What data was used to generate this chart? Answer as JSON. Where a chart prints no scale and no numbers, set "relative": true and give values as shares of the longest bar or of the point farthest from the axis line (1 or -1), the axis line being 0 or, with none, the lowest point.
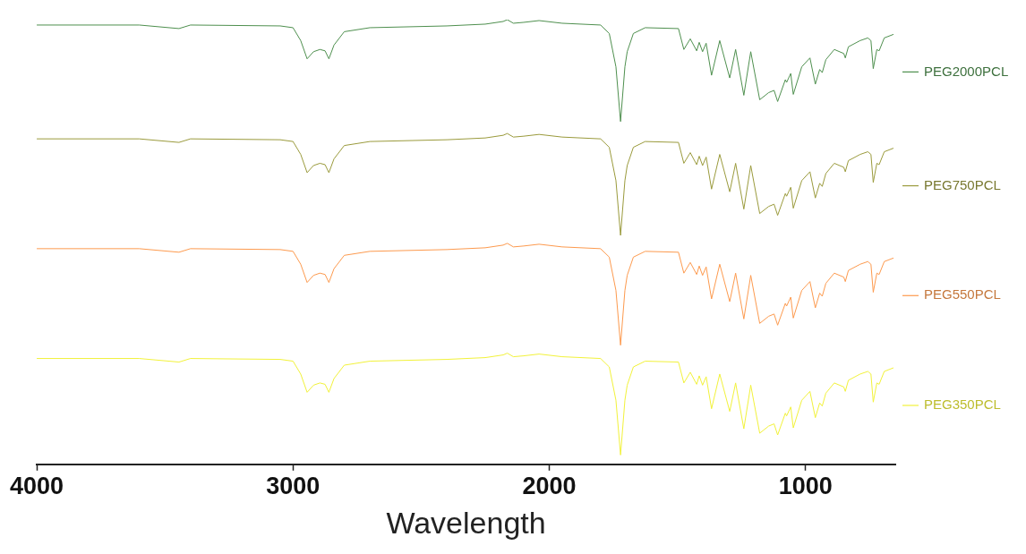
{
  "chart_data": {
    "type": "line",
    "xlabel": "Wavelength",
    "relative": true,
    "legend": "right",
    "marker": "none",
    "tick_labels": "x",
    "xlim": [
      4000,
      650
    ],
    "xticks": [
      4000,
      3000,
      2000,
      1000
    ],
    "x": [
      4000,
      3600,
      3445,
      3400,
      3050,
      3000,
      2970,
      2945,
      2920,
      2895,
      2875,
      2860,
      2840,
      2800,
      2700,
      2400,
      2250,
      2180,
      2164,
      2140,
      2100,
      2040,
      1950,
      1800,
      1766,
      1740,
      1722,
      1705,
      1696,
      1672,
      1626,
      1496,
      1475,
      1450,
      1425,
      1415,
      1402,
      1388,
      1367,
      1335,
      1296,
      1273,
      1241,
      1214,
      1179,
      1144,
      1123,
      1109,
      1079,
      1074,
      1058,
      1048,
      1015,
      983,
      962,
      945,
      935,
      921,
      888,
      851,
      845,
      833,
      787,
      757,
      745,
      736,
      722,
      713,
      693,
      657
    ],
    "series": [
      {
        "name": "PEG2000PCL",
        "color": "#4e8f4e",
        "values": [
          0.988,
          0.988,
          0.98,
          0.988,
          0.986,
          0.982,
          0.953,
          0.912,
          0.928,
          0.933,
          0.93,
          0.912,
          0.943,
          0.973,
          0.982,
          0.986,
          0.99,
          0.996,
          1,
          0.992,
          0.994,
          0.998,
          0.992,
          0.988,
          0.969,
          0.894,
          0.771,
          0.894,
          0.928,
          0.969,
          0.982,
          0.98,
          0.933,
          0.957,
          0.93,
          0.949,
          0.928,
          0.947,
          0.875,
          0.953,
          0.869,
          0.933,
          0.83,
          0.928,
          0.82,
          0.836,
          0.841,
          0.816,
          0.865,
          0.859,
          0.879,
          0.832,
          0.894,
          0.914,
          0.855,
          0.888,
          0.881,
          0.91,
          0.933,
          0.924,
          0.914,
          0.939,
          0.953,
          0.959,
          0.953,
          0.89,
          0.933,
          0.93,
          0.959,
          0.967
        ]
      },
      {
        "name": "PEG750PCL",
        "color": "#9a9a3c",
        "values": [
          0.732,
          0.732,
          0.724,
          0.732,
          0.73,
          0.726,
          0.697,
          0.656,
          0.672,
          0.677,
          0.674,
          0.656,
          0.687,
          0.717,
          0.726,
          0.73,
          0.734,
          0.74,
          0.744,
          0.736,
          0.738,
          0.742,
          0.736,
          0.732,
          0.713,
          0.638,
          0.515,
          0.638,
          0.672,
          0.713,
          0.726,
          0.724,
          0.677,
          0.701,
          0.674,
          0.693,
          0.672,
          0.691,
          0.619,
          0.697,
          0.613,
          0.677,
          0.574,
          0.672,
          0.564,
          0.58,
          0.585,
          0.56,
          0.609,
          0.603,
          0.623,
          0.576,
          0.638,
          0.658,
          0.599,
          0.632,
          0.625,
          0.654,
          0.677,
          0.668,
          0.658,
          0.683,
          0.697,
          0.703,
          0.697,
          0.634,
          0.677,
          0.674,
          0.703,
          0.711
        ]
      },
      {
        "name": "PEG550PCL",
        "color": "#fd9a4e",
        "values": [
          0.485,
          0.485,
          0.477,
          0.485,
          0.483,
          0.479,
          0.45,
          0.409,
          0.425,
          0.43,
          0.427,
          0.409,
          0.44,
          0.47,
          0.479,
          0.483,
          0.487,
          0.493,
          0.497,
          0.489,
          0.491,
          0.495,
          0.489,
          0.485,
          0.466,
          0.391,
          0.268,
          0.391,
          0.425,
          0.466,
          0.479,
          0.477,
          0.43,
          0.454,
          0.427,
          0.446,
          0.425,
          0.444,
          0.372,
          0.45,
          0.366,
          0.43,
          0.327,
          0.425,
          0.317,
          0.333,
          0.338,
          0.313,
          0.362,
          0.356,
          0.376,
          0.329,
          0.391,
          0.411,
          0.352,
          0.385,
          0.378,
          0.407,
          0.43,
          0.421,
          0.411,
          0.436,
          0.45,
          0.456,
          0.45,
          0.387,
          0.43,
          0.427,
          0.456,
          0.464
        ]
      },
      {
        "name": "PEG350PCL",
        "color": "#f2f23a",
        "values": [
          0.238,
          0.238,
          0.23,
          0.238,
          0.236,
          0.232,
          0.203,
          0.162,
          0.178,
          0.183,
          0.18,
          0.162,
          0.193,
          0.223,
          0.232,
          0.236,
          0.24,
          0.246,
          0.25,
          0.242,
          0.244,
          0.248,
          0.242,
          0.238,
          0.219,
          0.144,
          0.021,
          0.144,
          0.178,
          0.219,
          0.232,
          0.23,
          0.183,
          0.207,
          0.18,
          0.199,
          0.178,
          0.197,
          0.125,
          0.203,
          0.119,
          0.183,
          0.08,
          0.178,
          0.07,
          0.086,
          0.091,
          0.066,
          0.115,
          0.109,
          0.129,
          0.082,
          0.144,
          0.164,
          0.105,
          0.138,
          0.131,
          0.16,
          0.183,
          0.174,
          0.164,
          0.189,
          0.203,
          0.209,
          0.203,
          0.14,
          0.183,
          0.18,
          0.209,
          0.217
        ]
      }
    ]
  }
}
